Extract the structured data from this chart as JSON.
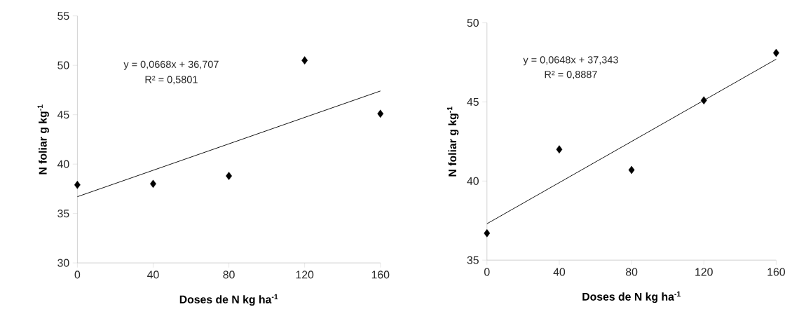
{
  "chart_data": [
    {
      "type": "scatter",
      "xlabel": "Doses de N kg ha$^{-1}$",
      "ylabel": "N foliar g kg$^{-1}$",
      "xlim": [
        0,
        160
      ],
      "xticks": [
        0,
        40,
        80,
        120,
        160
      ],
      "ylim": [
        30,
        55
      ],
      "yticks": [
        30,
        35,
        40,
        45,
        50,
        55
      ],
      "annotations": [
        "y = 0,0668x  +  36,707",
        "R² = 0,5801"
      ],
      "series": [
        {
          "marker": "diamond",
          "color": "#000000",
          "x": [
            0,
            40,
            80,
            120,
            160
          ],
          "values": [
            37.9,
            38.0,
            38.8,
            50.5,
            45.1
          ]
        },
        {
          "type": "line",
          "color": "#000000",
          "x": [
            0,
            160
          ],
          "values": [
            36.7,
            47.4
          ]
        }
      ]
    },
    {
      "type": "scatter",
      "xlabel": "Doses de N kg ha$^{-1}$",
      "ylabel": "N foliar g kg$^{-1}$",
      "xlim": [
        0,
        160
      ],
      "xticks": [
        0,
        40,
        80,
        120,
        160
      ],
      "ylim": [
        35,
        50
      ],
      "yticks": [
        35,
        40,
        45,
        50
      ],
      "annotations": [
        "y = 0,0648x  +  37,343",
        "R² = 0,8887"
      ],
      "series": [
        {
          "marker": "diamond",
          "color": "#000000",
          "x": [
            0,
            40,
            80,
            120,
            160
          ],
          "values": [
            36.7,
            42.0,
            40.7,
            45.1,
            48.1
          ]
        },
        {
          "type": "line",
          "color": "#000000",
          "x": [
            0,
            160
          ],
          "values": [
            37.3,
            47.7
          ]
        }
      ]
    }
  ]
}
